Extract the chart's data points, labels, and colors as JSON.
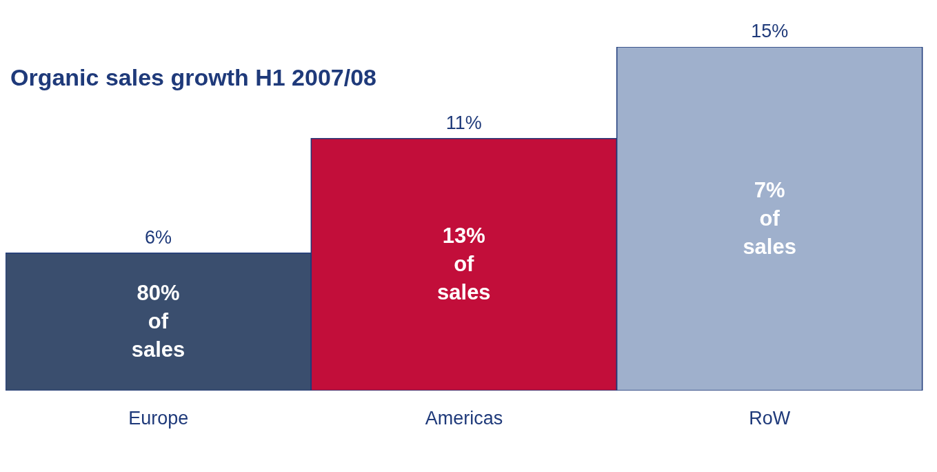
{
  "chart_data": {
    "type": "bar",
    "title": "Organic sales growth H1 2007/08",
    "categories": [
      "Europe",
      "Americas",
      "RoW"
    ],
    "values": [
      6,
      11,
      15
    ],
    "value_labels": [
      "6%",
      "11%",
      "15%"
    ],
    "colors": [
      "#3a4e6e",
      "#c20e3a",
      "#9fb0cc"
    ],
    "annotations": [
      "80% of sales",
      "13% of sales",
      "7% of sales"
    ]
  }
}
